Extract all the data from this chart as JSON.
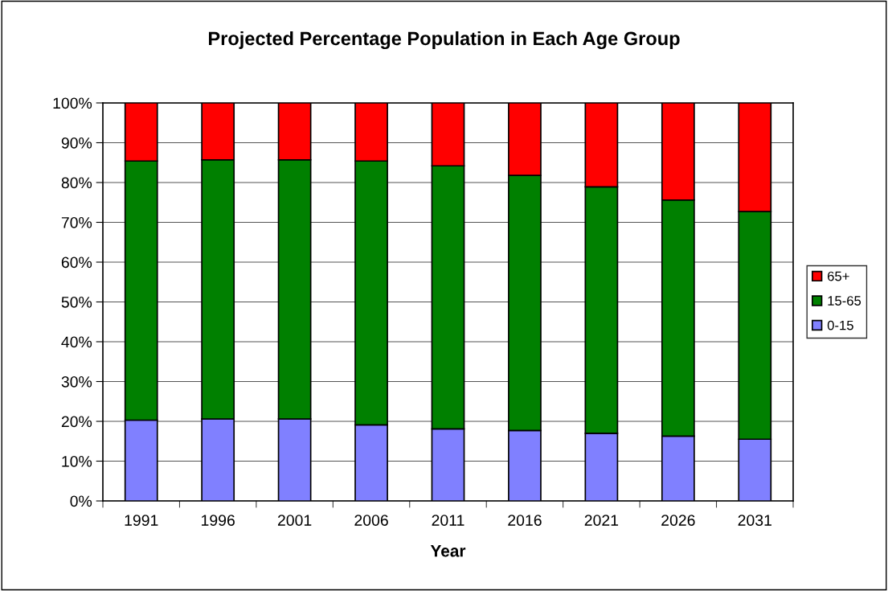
{
  "chart_data": {
    "type": "bar",
    "stacked": true,
    "title": "Projected Percentage Population in Each Age Group",
    "xlabel": "Year",
    "categories": [
      "1991",
      "1996",
      "2001",
      "2006",
      "2011",
      "2016",
      "2021",
      "2026",
      "2031"
    ],
    "series": [
      {
        "name": "0-15",
        "color": "#8080ff",
        "values": [
          20.3,
          20.6,
          20.6,
          19.1,
          18.1,
          17.7,
          17.0,
          16.3,
          15.5
        ]
      },
      {
        "name": "15-65",
        "color": "#008000",
        "values": [
          65.1,
          65.1,
          65.1,
          66.3,
          66.1,
          64.1,
          61.9,
          59.3,
          57.2
        ]
      },
      {
        "name": "65+",
        "color": "#ff0000",
        "values": [
          14.6,
          14.3,
          14.3,
          14.6,
          15.8,
          18.2,
          21.1,
          24.4,
          27.3
        ]
      }
    ],
    "ylim": [
      0,
      100
    ],
    "yticks": [
      {
        "value": 0,
        "label": "0%"
      },
      {
        "value": 10,
        "label": "10%"
      },
      {
        "value": 20,
        "label": "20%"
      },
      {
        "value": 30,
        "label": "30%"
      },
      {
        "value": 40,
        "label": "40%"
      },
      {
        "value": 50,
        "label": "50%"
      },
      {
        "value": 60,
        "label": "60%"
      },
      {
        "value": 70,
        "label": "70%"
      },
      {
        "value": 80,
        "label": "80%"
      },
      {
        "value": 90,
        "label": "90%"
      },
      {
        "value": 100,
        "label": "100%"
      }
    ],
    "grid": "y",
    "legend": "right"
  }
}
